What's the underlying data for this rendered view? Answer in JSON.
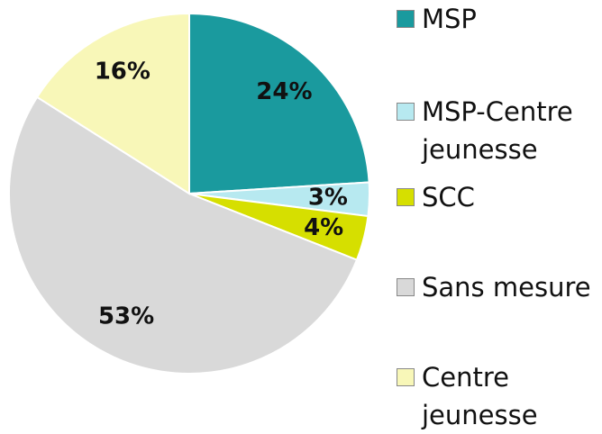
{
  "chart_data": {
    "type": "pie",
    "categories": [
      "MSP",
      "MSP-Centre jeunesse",
      "SCC",
      "Sans mesure",
      "Centre jeunesse"
    ],
    "values": [
      24,
      3,
      4,
      53,
      16
    ],
    "value_labels": [
      "24%",
      "3%",
      "4%",
      "53%",
      "16%"
    ],
    "colors": [
      "#1a9a9e",
      "#b7e9f0",
      "#d6df00",
      "#d9d9d9",
      "#f8f7b8"
    ]
  }
}
